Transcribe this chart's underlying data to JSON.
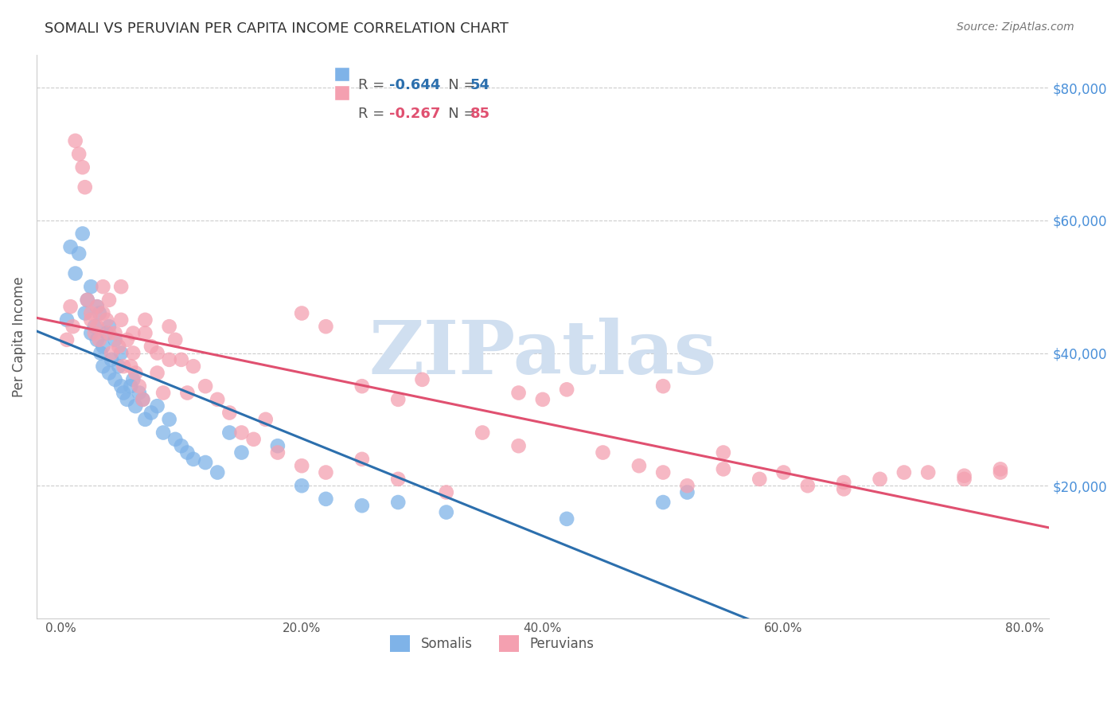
{
  "title": "SOMALI VS PERUVIAN PER CAPITA INCOME CORRELATION CHART",
  "source": "Source: ZipAtlas.com",
  "ylabel": "Per Capita Income",
  "xlabel_ticks": [
    "0.0%",
    "20.0%",
    "40.0%",
    "60.0%",
    "80.0%"
  ],
  "xlabel_vals": [
    0.0,
    0.2,
    0.4,
    0.6,
    0.8
  ],
  "ytick_labels": [
    "$20,000",
    "$40,000",
    "$60,000",
    "$80,000"
  ],
  "ytick_vals": [
    20000,
    40000,
    60000,
    80000
  ],
  "ylim": [
    0,
    85000
  ],
  "xlim": [
    -0.02,
    0.82
  ],
  "somali_R": -0.644,
  "somali_N": 54,
  "peruvian_R": -0.267,
  "peruvian_N": 85,
  "somali_color": "#7fb3e8",
  "peruvian_color": "#f4a0b0",
  "somali_line_color": "#2c6fad",
  "peruvian_line_color": "#e05070",
  "background_color": "#ffffff",
  "grid_color": "#cccccc",
  "watermark_text": "ZIPatlas",
  "watermark_color": "#d0dff0",
  "legend_label_1": "Somalis",
  "legend_label_2": "Peruvians",
  "somali_x": [
    0.005,
    0.008,
    0.012,
    0.015,
    0.018,
    0.02,
    0.022,
    0.025,
    0.025,
    0.028,
    0.03,
    0.03,
    0.032,
    0.033,
    0.035,
    0.035,
    0.038,
    0.04,
    0.04,
    0.042,
    0.045,
    0.045,
    0.048,
    0.05,
    0.05,
    0.052,
    0.055,
    0.058,
    0.06,
    0.062,
    0.065,
    0.068,
    0.07,
    0.075,
    0.08,
    0.085,
    0.09,
    0.095,
    0.1,
    0.105,
    0.11,
    0.12,
    0.13,
    0.14,
    0.15,
    0.18,
    0.2,
    0.22,
    0.25,
    0.28,
    0.32,
    0.42,
    0.5,
    0.52
  ],
  "somali_y": [
    45000,
    56000,
    52000,
    55000,
    58000,
    46000,
    48000,
    43000,
    50000,
    44000,
    47000,
    42000,
    46000,
    40000,
    41000,
    38000,
    43000,
    44000,
    37000,
    39000,
    42000,
    36000,
    38000,
    35000,
    40000,
    34000,
    33000,
    35000,
    36000,
    32000,
    34000,
    33000,
    30000,
    31000,
    32000,
    28000,
    30000,
    27000,
    26000,
    25000,
    24000,
    23500,
    22000,
    28000,
    25000,
    26000,
    20000,
    18000,
    17000,
    17500,
    16000,
    15000,
    17500,
    19000
  ],
  "peruvian_x": [
    0.005,
    0.008,
    0.01,
    0.012,
    0.015,
    0.018,
    0.02,
    0.022,
    0.025,
    0.025,
    0.028,
    0.03,
    0.03,
    0.032,
    0.035,
    0.035,
    0.038,
    0.04,
    0.04,
    0.042,
    0.045,
    0.048,
    0.05,
    0.052,
    0.055,
    0.058,
    0.06,
    0.062,
    0.065,
    0.068,
    0.07,
    0.075,
    0.08,
    0.085,
    0.09,
    0.095,
    0.1,
    0.105,
    0.11,
    0.12,
    0.13,
    0.14,
    0.15,
    0.16,
    0.17,
    0.18,
    0.2,
    0.22,
    0.25,
    0.28,
    0.32,
    0.35,
    0.38,
    0.42,
    0.45,
    0.48,
    0.5,
    0.52,
    0.55,
    0.58,
    0.62,
    0.65,
    0.68,
    0.72,
    0.75,
    0.78,
    0.5,
    0.55,
    0.6,
    0.65,
    0.7,
    0.75,
    0.78,
    0.38,
    0.4,
    0.2,
    0.22,
    0.25,
    0.28,
    0.3,
    0.05,
    0.06,
    0.07,
    0.08,
    0.09
  ],
  "peruvian_y": [
    42000,
    47000,
    44000,
    72000,
    70000,
    68000,
    65000,
    48000,
    46000,
    45000,
    43000,
    44000,
    47000,
    42000,
    46000,
    50000,
    45000,
    48000,
    43000,
    40000,
    43000,
    41000,
    45000,
    38000,
    42000,
    38000,
    40000,
    37000,
    35000,
    33000,
    43000,
    41000,
    37000,
    34000,
    44000,
    42000,
    39000,
    34000,
    38000,
    35000,
    33000,
    31000,
    28000,
    27000,
    30000,
    25000,
    23000,
    22000,
    24000,
    21000,
    19000,
    28000,
    26000,
    34500,
    25000,
    23000,
    22000,
    20000,
    22500,
    21000,
    20000,
    19500,
    21000,
    22000,
    21500,
    22000,
    35000,
    25000,
    22000,
    20500,
    22000,
    21000,
    22500,
    34000,
    33000,
    46000,
    44000,
    35000,
    33000,
    36000,
    50000,
    43000,
    45000,
    40000,
    39000
  ]
}
